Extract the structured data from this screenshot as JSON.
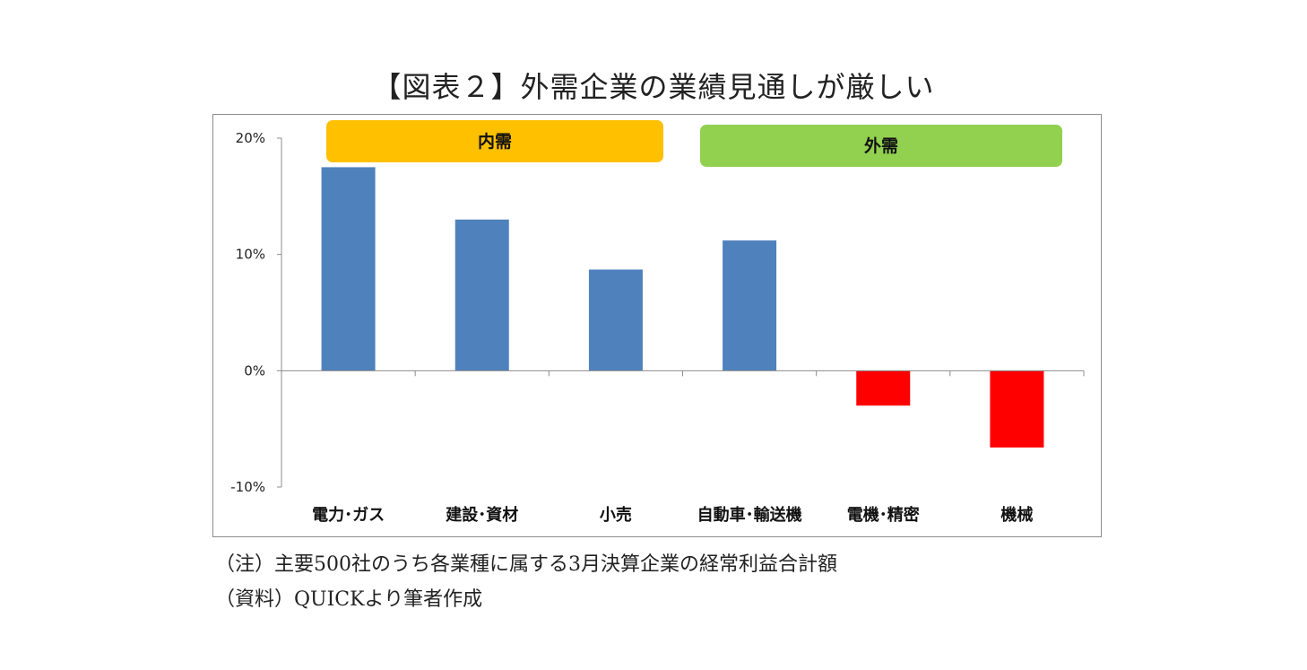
{
  "title": "【図表２】外需企業の業績見通しが厳しい",
  "chart_data": {
    "type": "bar",
    "title": "【図表２】外需企業の業績見通しが厳しい",
    "xlabel": "",
    "ylabel": "",
    "ylim": [
      -10,
      20
    ],
    "yticks": [
      20,
      10,
      0,
      -10
    ],
    "ytick_labels": [
      "20%",
      "10%",
      "0%",
      "-10%"
    ],
    "categories": [
      "電力･ガス",
      "建設･資材",
      "小売",
      "自動車･輸送機",
      "電機･精密",
      "機械"
    ],
    "values": [
      17.5,
      13.0,
      8.7,
      11.2,
      -3.0,
      -6.6
    ],
    "positive_color": "#4f81bd",
    "negative_color": "#ff0000",
    "groups": [
      {
        "label": "内需",
        "color": "#ffc000",
        "categories": [
          "電力･ガス",
          "建設･資材",
          "小売"
        ]
      },
      {
        "label": "外需",
        "color": "#92d050",
        "categories": [
          "自動車･輸送機",
          "電機･精密",
          "機械"
        ]
      }
    ]
  },
  "notes": {
    "note1": "（注）主要500社のうち各業種に属する3月決算企業の経常利益合計額",
    "note2": "（資料）QUICKより筆者作成"
  }
}
